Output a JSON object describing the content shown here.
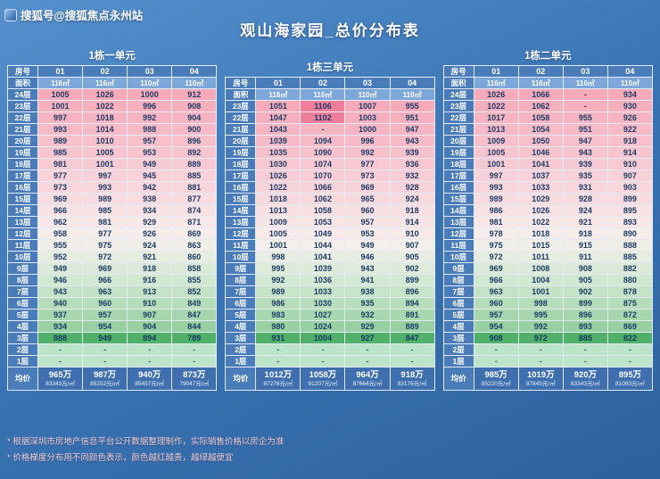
{
  "watermark": {
    "text": "搜狐号@搜狐焦点永州站"
  },
  "title": "观山海家园_总价分布表",
  "footnotes": [
    "* 根据深圳市房地产信息平台公开数据整理制作，实际销售价格以房企为准",
    "* 价格梯度分布用不同颜色表示，颜色越红越贵，越绿越便宜"
  ],
  "colors": {
    "header_blue": "#4a7cba",
    "area_blue": "#7da7d8",
    "avg_blue": "#3f6fae",
    "text_navy": "#1c3c66",
    "heat_top": "#f5a9b9",
    "heat_bottom": "#98d0a2",
    "green_row": "#50b06a",
    "dash_row": "#bce4c8",
    "hot_cell": "#ef7e9a",
    "footnote_pink": "#f3cdd4",
    "background_top": "#5591cd",
    "background_bottom": "#2d619d"
  },
  "chart_data": [
    {
      "type": "heatmap-table",
      "unit": "1栋一单元",
      "room_label": "房号",
      "area_label": "面积",
      "avg_label": "均价",
      "rooms": [
        "01",
        "02",
        "03",
        "04"
      ],
      "areas": [
        "116㎡",
        "116㎡",
        "110㎡",
        "110㎡"
      ],
      "floors": [
        "24层",
        "23层",
        "22层",
        "21层",
        "20层",
        "19层",
        "18层",
        "17层",
        "16层",
        "15层",
        "14层",
        "13层",
        "12层",
        "11层",
        "10层",
        "9层",
        "8层",
        "7层",
        "6层",
        "5层",
        "4层",
        "3层",
        "2层",
        "1层"
      ],
      "rows": [
        [
          "1005",
          "1026",
          "1000",
          "912"
        ],
        [
          "1001",
          "1022",
          "996",
          "908"
        ],
        [
          "997",
          "1018",
          "992",
          "904"
        ],
        [
          "993",
          "1014",
          "988",
          "900"
        ],
        [
          "989",
          "1010",
          "957",
          "896"
        ],
        [
          "985",
          "1005",
          "953",
          "892"
        ],
        [
          "981",
          "1001",
          "949",
          "889"
        ],
        [
          "977",
          "997",
          "945",
          "885"
        ],
        [
          "973",
          "993",
          "942",
          "881"
        ],
        [
          "969",
          "989",
          "938",
          "877"
        ],
        [
          "966",
          "985",
          "934",
          "874"
        ],
        [
          "962",
          "981",
          "929",
          "871"
        ],
        [
          "958",
          "977",
          "926",
          "869"
        ],
        [
          "955",
          "975",
          "924",
          "863"
        ],
        [
          "952",
          "972",
          "921",
          "860"
        ],
        [
          "949",
          "969",
          "918",
          "858"
        ],
        [
          "946",
          "966",
          "916",
          "855"
        ],
        [
          "943",
          "963",
          "913",
          "852"
        ],
        [
          "940",
          "960",
          "910",
          "849"
        ],
        [
          "937",
          "957",
          "907",
          "847"
        ],
        [
          "934",
          "954",
          "904",
          "844"
        ],
        [
          "888",
          "949",
          "894",
          "789"
        ],
        [
          "-",
          "-",
          "-",
          "-"
        ],
        [
          "-",
          "-",
          "-",
          "-"
        ]
      ],
      "avg_prices": [
        "965万",
        "987万",
        "940万",
        "873万"
      ],
      "avg_unit_prices": [
        "83343元/㎡",
        "85252元/㎡",
        "85457元/㎡",
        "79047元/㎡"
      ]
    },
    {
      "type": "heatmap-table",
      "unit": "1栋三单元",
      "room_label": "房号",
      "area_label": "面积",
      "avg_label": "均价",
      "rooms": [
        "01",
        "02",
        "03",
        "04"
      ],
      "areas": [
        "116㎡",
        "116㎡",
        "110㎡",
        "110㎡"
      ],
      "floors": [
        "23层",
        "22层",
        "21层",
        "20层",
        "19层",
        "18层",
        "17层",
        "16层",
        "15层",
        "14层",
        "13层",
        "12层",
        "11层",
        "10层",
        "9层",
        "8层",
        "7层",
        "6层",
        "5层",
        "4层",
        "3层",
        "2层",
        "1层"
      ],
      "rows": [
        [
          "1051",
          "1106",
          "1007",
          "955"
        ],
        [
          "1047",
          "1102",
          "1003",
          "951"
        ],
        [
          "1043",
          "-",
          "1000",
          "947"
        ],
        [
          "1039",
          "1094",
          "996",
          "943"
        ],
        [
          "1035",
          "1090",
          "992",
          "939"
        ],
        [
          "1030",
          "1074",
          "977",
          "936"
        ],
        [
          "1026",
          "1070",
          "973",
          "932"
        ],
        [
          "1022",
          "1066",
          "969",
          "928"
        ],
        [
          "1018",
          "1062",
          "965",
          "924"
        ],
        [
          "1013",
          "1058",
          "960",
          "918"
        ],
        [
          "1009",
          "1053",
          "957",
          "914"
        ],
        [
          "1005",
          "1049",
          "953",
          "910"
        ],
        [
          "1001",
          "1044",
          "949",
          "907"
        ],
        [
          "998",
          "1041",
          "946",
          "905"
        ],
        [
          "995",
          "1039",
          "943",
          "902"
        ],
        [
          "992",
          "1036",
          "941",
          "899"
        ],
        [
          "989",
          "1033",
          "938",
          "896"
        ],
        [
          "986",
          "1030",
          "935",
          "894"
        ],
        [
          "983",
          "1027",
          "932",
          "891"
        ],
        [
          "980",
          "1024",
          "929",
          "889"
        ],
        [
          "931",
          "1004",
          "927",
          "847"
        ],
        [
          "-",
          "-",
          "-",
          "-"
        ],
        [
          "-",
          "-",
          "-",
          "-"
        ]
      ],
      "hot_cells": [
        [
          0,
          1
        ],
        [
          1,
          1
        ]
      ],
      "avg_prices": [
        "1012万",
        "1058万",
        "964万",
        "918万"
      ],
      "avg_unit_prices": [
        "87278元/㎡",
        "91207元/㎡",
        "87664元/㎡",
        "83176元/㎡"
      ]
    },
    {
      "type": "heatmap-table",
      "unit": "1栋二单元",
      "room_label": "房号",
      "area_label": "面积",
      "avg_label": "均价",
      "rooms": [
        "01",
        "02",
        "03",
        "04"
      ],
      "areas": [
        "116㎡",
        "116㎡",
        "110㎡",
        "110㎡"
      ],
      "floors": [
        "24层",
        "23层",
        "22层",
        "21层",
        "20层",
        "19层",
        "18层",
        "17层",
        "16层",
        "15层",
        "14层",
        "13层",
        "12层",
        "11层",
        "10层",
        "9层",
        "8层",
        "7层",
        "6层",
        "5层",
        "4层",
        "3层",
        "2层",
        "1层"
      ],
      "rows": [
        [
          "1026",
          "1066",
          "-",
          "934"
        ],
        [
          "1022",
          "1062",
          "-",
          "930"
        ],
        [
          "1017",
          "1058",
          "955",
          "926"
        ],
        [
          "1013",
          "1054",
          "951",
          "922"
        ],
        [
          "1009",
          "1050",
          "947",
          "918"
        ],
        [
          "1005",
          "1046",
          "943",
          "914"
        ],
        [
          "1001",
          "1041",
          "939",
          "910"
        ],
        [
          "997",
          "1037",
          "935",
          "907"
        ],
        [
          "993",
          "1033",
          "931",
          "903"
        ],
        [
          "989",
          "1029",
          "928",
          "899"
        ],
        [
          "986",
          "1026",
          "924",
          "895"
        ],
        [
          "981",
          "1022",
          "921",
          "893"
        ],
        [
          "978",
          "1018",
          "918",
          "890"
        ],
        [
          "975",
          "1015",
          "915",
          "888"
        ],
        [
          "972",
          "1011",
          "911",
          "885"
        ],
        [
          "969",
          "1008",
          "908",
          "882"
        ],
        [
          "966",
          "1004",
          "905",
          "880"
        ],
        [
          "963",
          "1001",
          "902",
          "878"
        ],
        [
          "960",
          "998",
          "899",
          "875"
        ],
        [
          "957",
          "995",
          "896",
          "872"
        ],
        [
          "954",
          "992",
          "893",
          "869"
        ],
        [
          "908",
          "972",
          "885",
          "822"
        ],
        [
          "-",
          "-",
          "-",
          "-"
        ],
        [
          "-",
          "-",
          "-",
          "-"
        ]
      ],
      "avg_prices": [
        "985万",
        "1019万",
        "920万",
        "895万"
      ],
      "avg_unit_prices": [
        "85220元/㎡",
        "87845元/㎡",
        "83343元/㎡",
        "81093元/㎡"
      ]
    }
  ]
}
